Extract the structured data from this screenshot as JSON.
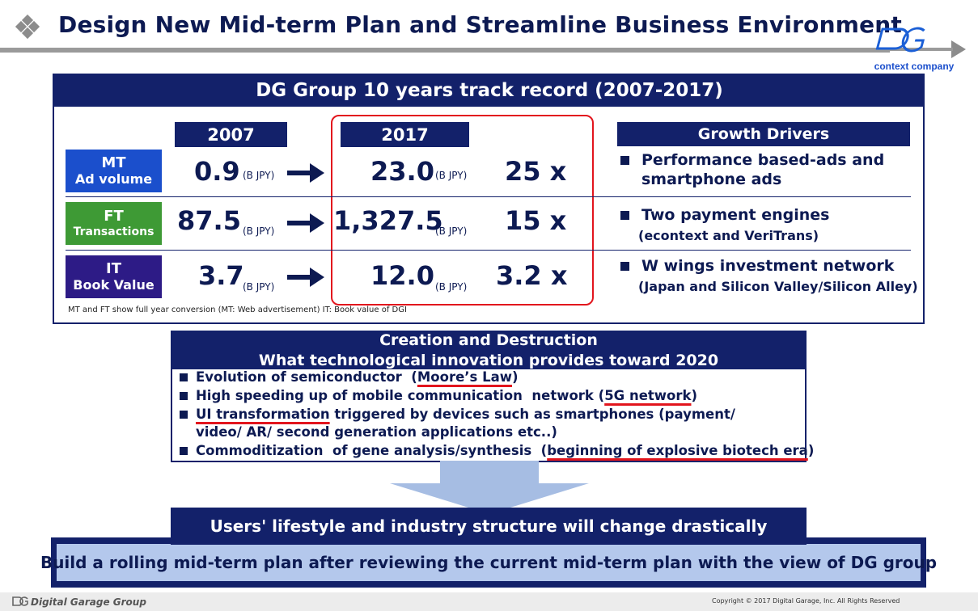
{
  "page": {
    "title": "Design New Mid-term Plan and Streamline Business Environment",
    "logo_text": "context company"
  },
  "track": {
    "header": "DG Group 10 years track record (2007-2017)",
    "year_from": "2007",
    "year_to": "2017",
    "rows": [
      {
        "label_main": "MT",
        "label_sub": "Ad volume",
        "value_2007": "0.9",
        "unit_2007": "(B JPY)",
        "value_2017": "23.0",
        "unit_2017": "(B JPY)",
        "multiple": "25 x",
        "color": "#1b4fcc"
      },
      {
        "label_main": "FT",
        "label_sub": "Transactions",
        "value_2007": "87.5",
        "unit_2007": "(B JPY)",
        "value_2017": "1,327.5",
        "unit_2017": "(B JPY)",
        "multiple": "15 x",
        "color": "#3e9a35"
      },
      {
        "label_main": "IT",
        "label_sub": "Book Value",
        "value_2007": "3.7",
        "unit_2007": "(B JPY)",
        "value_2017": "12.0",
        "unit_2017": "(B JPY)",
        "multiple": "3.2 x",
        "color": "#2d1b86"
      }
    ],
    "footnote": "MT and FT show full year conversion (MT: Web advertisement) IT: Book value of DGI"
  },
  "drivers": {
    "header": "Growth Drivers",
    "items": [
      {
        "line1": "Performance based-ads and",
        "line2": "smartphone ads"
      },
      {
        "line1": "Two payment engines",
        "sub": "(econtext and VeriTrans)"
      },
      {
        "line1": "W wings investment network",
        "sub": "(Japan and Silicon Valley/Silicon Alley)"
      }
    ]
  },
  "innovation": {
    "header_line1": "Creation and Destruction",
    "header_line2": "What technological innovation provides toward 2020",
    "items": [
      {
        "pre": "Evolution of semiconductor  (",
        "hl": "Moore’s Law",
        "post": ")"
      },
      {
        "pre": "High speeding up of mobile communication  network (",
        "hl": "5G network",
        "post": ")"
      },
      {
        "pre": "",
        "hl": "UI transformation",
        "post": " triggered by devices such as smartphones (payment/",
        "line2": "video/ AR/ second generation applications etc..)"
      },
      {
        "pre": "Commoditization  of gene analysis/synthesis  (",
        "hl": "beginning of explosive biotech era",
        "post": ")"
      }
    ]
  },
  "bottom": {
    "users_text": "Users' lifestyle and industry structure will change drastically",
    "build_text": "Build a rolling mid-term plan after reviewing the current mid-term plan with the view of DG group"
  },
  "footer": {
    "company": "Digital Garage Group",
    "copyright": "Copyright © 2017 Digital Garage, Inc. All Rights Reserved"
  },
  "colors": {
    "navy": "#13216a",
    "accent_red": "#e2151d",
    "mt_blue": "#1b4fcc",
    "ft_green": "#3e9a35",
    "it_purple": "#2d1b86",
    "build_fill": "#b4c8ec"
  }
}
